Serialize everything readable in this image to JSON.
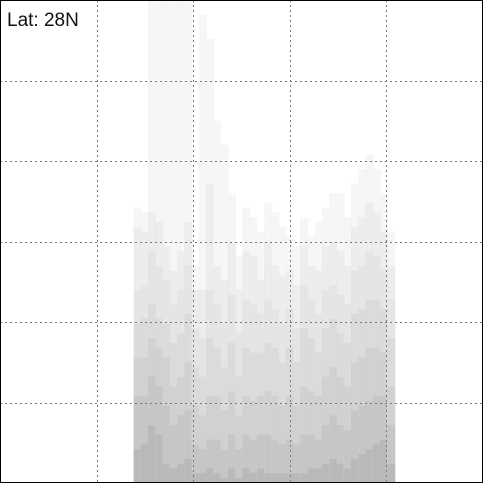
{
  "chart_data": {
    "type": "heatmap",
    "title": "Lat: 28N",
    "xlabel": "",
    "ylabel": "",
    "grid": true,
    "grid_divisions": {
      "x": 5,
      "y": 6
    },
    "shade_colors": [
      "#efefef",
      "#e6e6e6",
      "#dedede",
      "#d4d4d4",
      "#c9c9c9",
      "#bdbdbd",
      "#aeaeae",
      "#9e9e9e",
      "#8e8e8e"
    ],
    "columns": [
      {
        "x": 0.285,
        "top": [
          0.43,
          0.47,
          0.6,
          0.67,
          0.74,
          0.82,
          0.93
        ]
      },
      {
        "x": 0.3,
        "top": [
          0.44,
          0.48,
          0.59,
          0.66,
          0.74,
          0.82,
          0.92
        ]
      },
      {
        "x": 0.315,
        "top": [
          0.0,
          0.44,
          0.52,
          0.63,
          0.7,
          0.78,
          0.88
        ]
      },
      {
        "x": 0.33,
        "top": [
          0.0,
          0.46,
          0.55,
          0.66,
          0.72,
          0.8,
          0.9
        ]
      },
      {
        "x": 0.345,
        "top": [
          0.0,
          0.51,
          0.58,
          0.67,
          0.74,
          0.84,
          0.96
        ]
      },
      {
        "x": 0.36,
        "top": [
          0.0,
          0.56,
          0.63,
          0.71,
          0.8,
          0.88,
          0.97
        ]
      },
      {
        "x": 0.375,
        "top": [
          0.0,
          0.52,
          0.6,
          0.69,
          0.78,
          0.86,
          0.96
        ]
      },
      {
        "x": 0.39,
        "top": [
          0.0,
          0.46,
          0.55,
          0.65,
          0.75,
          0.85,
          0.95
        ]
      },
      {
        "x": 0.405,
        "top": [
          0.55,
          0.6,
          0.68,
          0.76,
          0.84,
          0.92,
          0.98
        ]
      },
      {
        "x": 0.42,
        "top": [
          0.03,
          0.6,
          0.7,
          0.78,
          0.86,
          0.93,
          0.98
        ]
      },
      {
        "x": 0.435,
        "top": [
          0.08,
          0.38,
          0.6,
          0.7,
          0.82,
          0.91,
          0.97
        ]
      },
      {
        "x": 0.45,
        "top": [
          0.25,
          0.55,
          0.63,
          0.72,
          0.82,
          0.91,
          0.98
        ]
      },
      {
        "x": 0.465,
        "top": [
          0.3,
          0.58,
          0.67,
          0.76,
          0.85,
          0.93,
          0.99
        ]
      },
      {
        "x": 0.48,
        "top": [
          0.4,
          0.5,
          0.61,
          0.71,
          0.81,
          0.9,
          0.97
        ]
      },
      {
        "x": 0.495,
        "top": [
          0.53,
          0.6,
          0.69,
          0.78,
          0.86,
          0.93,
          0.99
        ]
      },
      {
        "x": 0.51,
        "top": [
          0.43,
          0.52,
          0.62,
          0.72,
          0.82,
          0.9,
          0.97
        ]
      },
      {
        "x": 0.525,
        "top": [
          0.45,
          0.53,
          0.63,
          0.73,
          0.83,
          0.91,
          0.98
        ]
      },
      {
        "x": 0.54,
        "top": [
          0.48,
          0.58,
          0.65,
          0.73,
          0.82,
          0.9,
          0.97
        ]
      },
      {
        "x": 0.555,
        "top": [
          0.42,
          0.5,
          0.62,
          0.71,
          0.81,
          0.9,
          0.98
        ]
      },
      {
        "x": 0.57,
        "top": [
          0.44,
          0.55,
          0.64,
          0.72,
          0.82,
          0.91,
          0.98
        ]
      },
      {
        "x": 0.585,
        "top": [
          0.47,
          0.57,
          0.67,
          0.75,
          0.84,
          0.92,
          0.98
        ]
      },
      {
        "x": 0.6,
        "top": [
          0.49,
          0.56,
          0.64,
          0.72,
          0.82,
          0.91,
          0.98
        ]
      },
      {
        "x": 0.615,
        "top": [
          0.51,
          0.59,
          0.68,
          0.75,
          0.84,
          0.92,
          0.98
        ]
      },
      {
        "x": 0.63,
        "top": [
          0.45,
          0.51,
          0.59,
          0.68,
          0.8,
          0.9,
          0.98
        ]
      },
      {
        "x": 0.645,
        "top": [
          0.49,
          0.55,
          0.62,
          0.7,
          0.81,
          0.9,
          0.97
        ]
      },
      {
        "x": 0.66,
        "top": [
          0.46,
          0.56,
          0.65,
          0.73,
          0.82,
          0.91,
          0.97
        ]
      },
      {
        "x": 0.675,
        "top": [
          0.43,
          0.51,
          0.6,
          0.68,
          0.78,
          0.88,
          0.96
        ]
      },
      {
        "x": 0.69,
        "top": [
          0.4,
          0.5,
          0.59,
          0.66,
          0.76,
          0.86,
          0.95
        ]
      },
      {
        "x": 0.705,
        "top": [
          0.4,
          0.52,
          0.61,
          0.69,
          0.78,
          0.88,
          0.96
        ]
      },
      {
        "x": 0.72,
        "top": [
          0.45,
          0.55,
          0.63,
          0.71,
          0.8,
          0.89,
          0.97
        ]
      },
      {
        "x": 0.735,
        "top": [
          0.38,
          0.47,
          0.56,
          0.65,
          0.75,
          0.85,
          0.95
        ]
      },
      {
        "x": 0.75,
        "top": [
          0.35,
          0.45,
          0.55,
          0.64,
          0.74,
          0.84,
          0.94
        ]
      },
      {
        "x": 0.765,
        "top": [
          0.32,
          0.42,
          0.52,
          0.62,
          0.72,
          0.83,
          0.93
        ]
      },
      {
        "x": 0.78,
        "top": [
          0.35,
          0.44,
          0.53,
          0.62,
          0.72,
          0.82,
          0.92
        ]
      },
      {
        "x": 0.795,
        "top": [
          0.4,
          0.48,
          0.56,
          0.64,
          0.73,
          0.82,
          0.91
        ]
      },
      {
        "x": 0.81,
        "top": [
          0.48,
          0.55,
          0.62,
          0.7,
          0.8,
          0.88,
          0.96
        ]
      }
    ]
  }
}
